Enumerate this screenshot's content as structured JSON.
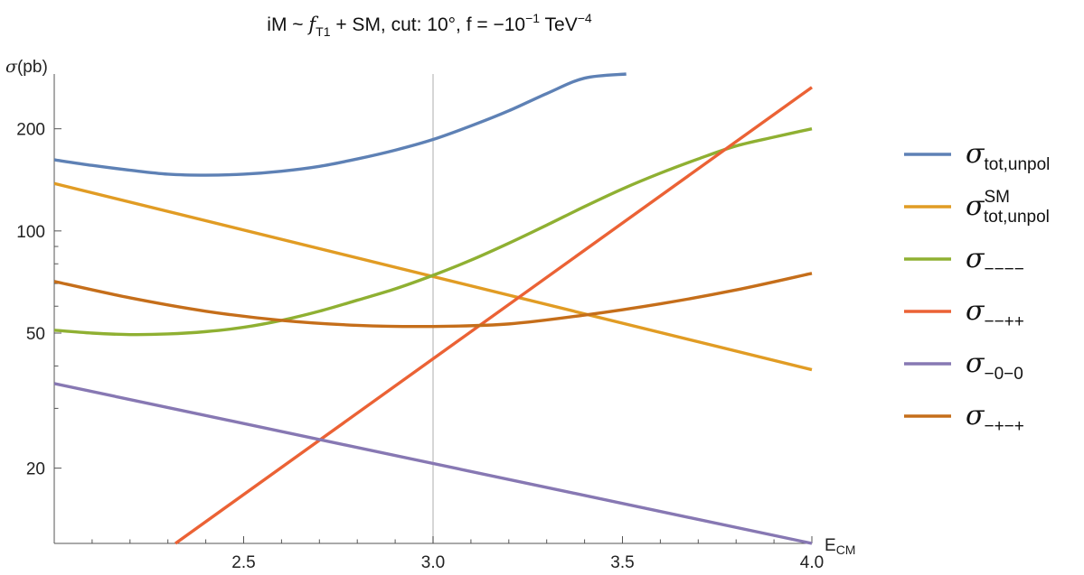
{
  "chart_data": {
    "type": "line",
    "title": {
      "prefix": "iM ~ ",
      "f": "f",
      "f_sub": "T1",
      "middle": " + SM,  cut: 10°,  f = −10",
      "exp": "−1",
      "unit": " TeV",
      "unit_exp": "−4"
    },
    "ylabel": {
      "sym": "σ",
      "unit": "(pb)"
    },
    "xlabel": {
      "main": "E",
      "sub": "CM"
    },
    "y_scale": "log",
    "xlim": [
      2.0,
      4.0
    ],
    "ylim": [
      12,
      290
    ],
    "x_ticks": [
      "2.5",
      "3.0",
      "3.5",
      "4.0"
    ],
    "x_tick_values": [
      2.5,
      3.0,
      3.5,
      4.0
    ],
    "y_ticks": [
      "20",
      "50",
      "100",
      "200"
    ],
    "y_tick_values": [
      20,
      50,
      100,
      200
    ],
    "vertical_line_x": 3.0,
    "legend_placement": "right",
    "series": [
      {
        "sub": "tot,unpol",
        "sup": "",
        "color": "#5e81b5",
        "points": [
          [
            2.0,
            162
          ],
          [
            2.1,
            156
          ],
          [
            2.2,
            151
          ],
          [
            2.3,
            147
          ],
          [
            2.4,
            146
          ],
          [
            2.5,
            147
          ],
          [
            2.6,
            150
          ],
          [
            2.7,
            155
          ],
          [
            2.8,
            163
          ],
          [
            2.9,
            173
          ],
          [
            3.0,
            186
          ],
          [
            3.1,
            204
          ],
          [
            3.2,
            226
          ],
          [
            3.3,
            254
          ],
          [
            3.4,
            282
          ],
          [
            3.51,
            290
          ]
        ]
      },
      {
        "sub": "tot,unpol",
        "sup": "SM",
        "color": "#e19c24",
        "points": [
          [
            2.0,
            138
          ],
          [
            4.0,
            39
          ]
        ]
      },
      {
        "sub": "−−−−",
        "sup": "",
        "color": "#8fb032",
        "points": [
          [
            2.0,
            51
          ],
          [
            2.1,
            50
          ],
          [
            2.2,
            49.5
          ],
          [
            2.3,
            49.7
          ],
          [
            2.4,
            50.5
          ],
          [
            2.5,
            52
          ],
          [
            2.6,
            54.5
          ],
          [
            2.7,
            58
          ],
          [
            2.8,
            62.5
          ],
          [
            2.9,
            67.5
          ],
          [
            3.0,
            74
          ],
          [
            3.1,
            82
          ],
          [
            3.2,
            92
          ],
          [
            3.3,
            104
          ],
          [
            3.4,
            118
          ],
          [
            3.5,
            133
          ],
          [
            3.6,
            148
          ],
          [
            3.7,
            163
          ],
          [
            3.8,
            178
          ],
          [
            3.9,
            189
          ],
          [
            4.0,
            200
          ]
        ]
      },
      {
        "sub": "−−++",
        "sup": "",
        "color": "#eb6235",
        "points": [
          [
            2.32,
            12
          ],
          [
            4.0,
            265
          ]
        ]
      },
      {
        "sub": "−0−0",
        "sup": "",
        "color": "#8778b3",
        "points": [
          [
            2.0,
            35.5
          ],
          [
            4.0,
            12
          ]
        ]
      },
      {
        "sub": "−+−+",
        "sup": "",
        "color": "#c56e1a",
        "points": [
          [
            2.0,
            71
          ],
          [
            2.2,
            63.5
          ],
          [
            2.4,
            58
          ],
          [
            2.6,
            54.5
          ],
          [
            2.8,
            52.7
          ],
          [
            3.0,
            52.3
          ],
          [
            3.2,
            53.2
          ],
          [
            3.4,
            56.5
          ],
          [
            3.6,
            61
          ],
          [
            3.8,
            67
          ],
          [
            4.0,
            75
          ]
        ]
      }
    ]
  }
}
